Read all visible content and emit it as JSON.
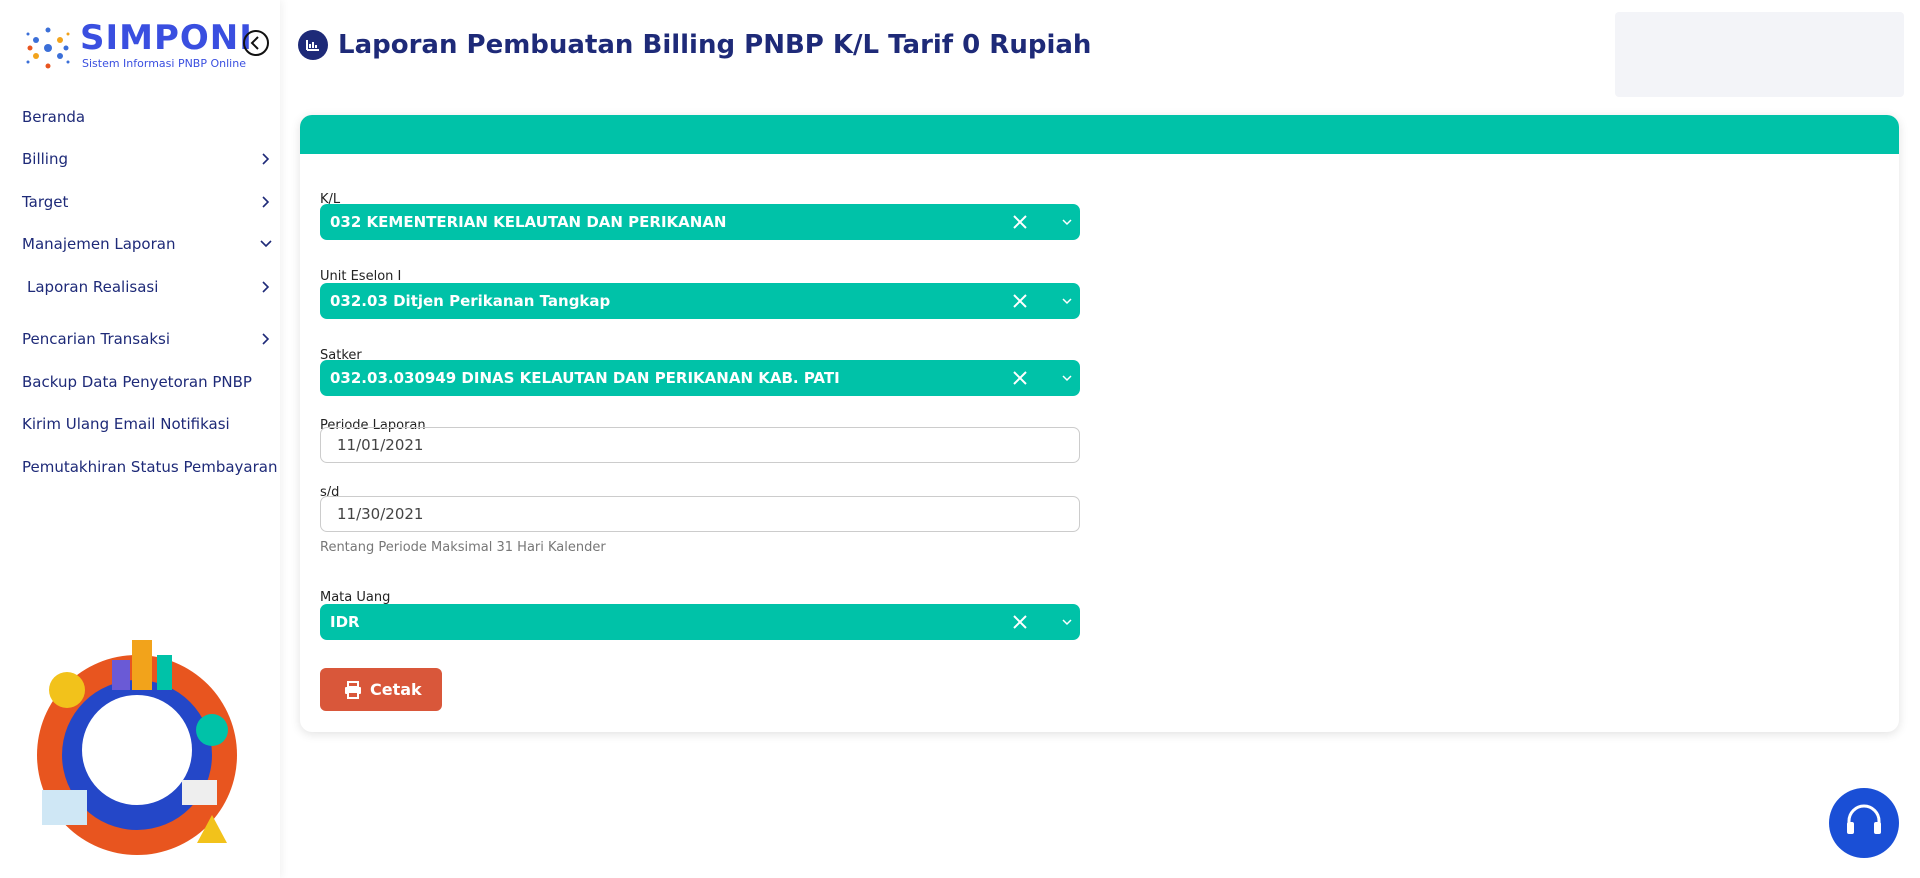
{
  "brand": {
    "name": "SIMPONI",
    "tagline": "Sistem Informasi PNBP Online"
  },
  "menu": [
    {
      "label": "Beranda"
    },
    {
      "label": "Billing"
    },
    {
      "label": "Target"
    },
    {
      "label": "Manajemen Laporan"
    },
    {
      "label": "Laporan Realisasi"
    },
    {
      "label": "Pencarian Transaksi"
    },
    {
      "label": "Backup Data Penyetoran PNBP"
    },
    {
      "label": "Kirim Ulang Email Notifikasi"
    },
    {
      "label": "Pemutakhiran Status Pembayaran"
    }
  ],
  "header": {
    "title": "Laporan Pembuatan Billing PNBP K/L Tarif 0 Rupiah"
  },
  "form": {
    "fields": [
      {
        "label": "K/L",
        "value": "032 KEMENTERIAN KELAUTAN DAN PERIKANAN"
      },
      {
        "label": "Unit Eselon I",
        "value": "032.03 Ditjen Perikanan Tangkap"
      },
      {
        "label": "Satker",
        "value": "032.03.030949 DINAS KELAUTAN DAN PERIKANAN KAB. PATI"
      },
      {
        "label": "Periode Laporan",
        "value": "11/01/2021"
      },
      {
        "label": "s/d",
        "value": "11/30/2021"
      },
      {
        "label": "Mata Uang",
        "value": "IDR"
      }
    ],
    "hint": "Rentang Periode Maksimal 31 Hari Kalender",
    "button": "Cetak"
  }
}
